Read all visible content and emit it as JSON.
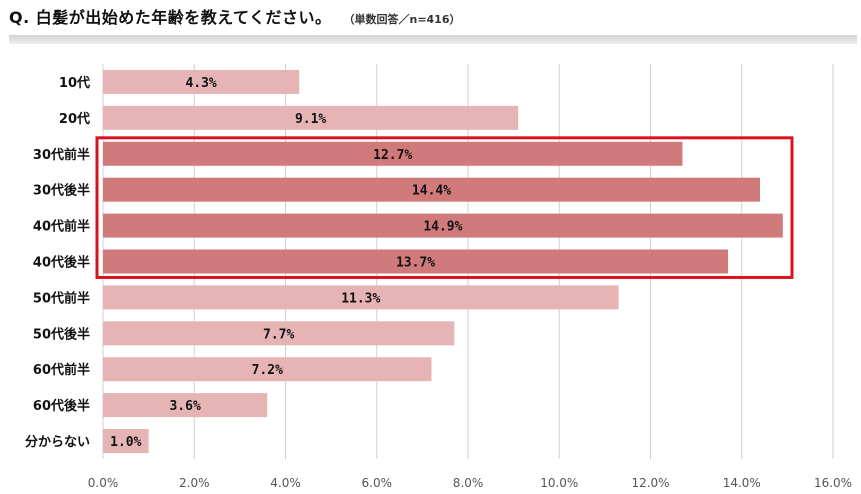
{
  "title": {
    "main": "Q. 白髪が出始めた年齢を教えてください。",
    "note": "（単数回答／n=416）"
  },
  "colors": {
    "bar_normal": "#e6b4b5",
    "bar_highlight": "#d17a7b",
    "highlight_box": "#d9131b",
    "grid": "#d0d0d0"
  },
  "chart_data": {
    "type": "bar",
    "orientation": "horizontal",
    "categories": [
      "10代",
      "20代",
      "30代前半",
      "30代後半",
      "40代前半",
      "40代後半",
      "50代前半",
      "50代後半",
      "60代前半",
      "60代後半",
      "分からない"
    ],
    "values": [
      4.3,
      9.1,
      12.7,
      14.4,
      14.9,
      13.7,
      11.3,
      7.7,
      7.2,
      3.6,
      1.0
    ],
    "value_labels": [
      "4.3%",
      "9.1%",
      "12.7%",
      "14.4%",
      "14.9%",
      "13.7%",
      "11.3%",
      "7.7%",
      "7.2%",
      "3.6%",
      "1.0%"
    ],
    "highlighted": [
      "30代前半",
      "30代後半",
      "40代前半",
      "40代後半"
    ],
    "xlim": [
      0,
      16
    ],
    "x_ticks": [
      "0.0%",
      "2.0%",
      "4.0%",
      "6.0%",
      "8.0%",
      "10.0%",
      "12.0%",
      "14.0%",
      "16.0%"
    ],
    "grid": true,
    "legend": "none"
  }
}
